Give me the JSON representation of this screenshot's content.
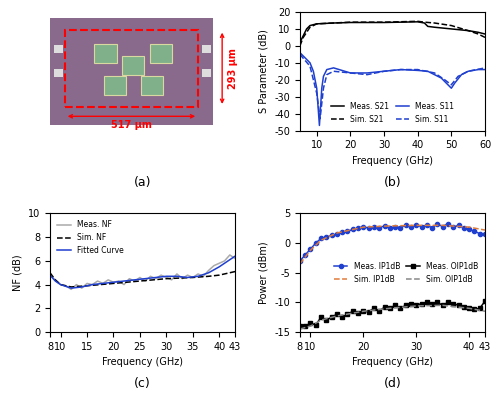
{
  "photo": {
    "caption": "(a)",
    "width_label": "517 μm",
    "height_label": "293 μm"
  },
  "chart_data": [
    {
      "type": "line",
      "caption": "(b)",
      "x_label": "Frequency (GHz)",
      "y_label": "S Parameter (dB)",
      "xlim": [
        5,
        60
      ],
      "xticks": [
        10,
        20,
        30,
        40,
        50,
        60
      ],
      "ylim": [
        -50,
        20
      ],
      "yticks": [
        -50,
        -40,
        -30,
        -20,
        -10,
        0,
        10,
        20
      ],
      "legend": "lower center",
      "series": [
        {
          "name": "Meas. S21",
          "color": "#000000",
          "line_style": "solid",
          "x": [
            5,
            6,
            7,
            8,
            10,
            15,
            20,
            25,
            30,
            35,
            40,
            42,
            43,
            45,
            50,
            55,
            58,
            60
          ],
          "values": [
            2,
            6,
            10,
            12,
            13,
            13.5,
            13.8,
            13.8,
            13.8,
            14,
            14.2,
            13.5,
            11.5,
            11,
            10,
            9,
            8,
            7
          ]
        },
        {
          "name": "Sim. S21",
          "color": "#000000",
          "line_style": "dashed",
          "x": [
            5,
            6,
            8,
            10,
            15,
            20,
            30,
            40,
            42,
            45,
            50,
            55,
            58,
            60
          ],
          "values": [
            0,
            5,
            11,
            13,
            13.5,
            14,
            14,
            14.5,
            14,
            13.5,
            12,
            9,
            7,
            5
          ]
        },
        {
          "name": "Meas. S11",
          "color": "#1f3fcf",
          "line_style": "solid",
          "x": [
            5,
            6,
            8,
            9,
            10,
            10.8,
            11.5,
            12,
            13,
            15,
            20,
            25,
            30,
            35,
            40,
            43,
            45,
            47,
            49,
            50,
            51,
            53,
            55,
            58,
            60
          ],
          "values": [
            -4,
            -6,
            -10,
            -15,
            -25,
            -47,
            -25,
            -18,
            -14,
            -13,
            -16,
            -16,
            -15,
            -14,
            -14.5,
            -15,
            -17,
            -19,
            -23,
            -25,
            -22,
            -17,
            -15,
            -14,
            -14
          ]
        },
        {
          "name": "Sim. S11",
          "color": "#1f3fcf",
          "line_style": "dashed",
          "x": [
            5,
            8,
            10,
            11,
            12,
            13,
            15,
            20,
            25,
            30,
            35,
            40,
            45,
            48,
            50,
            52,
            55,
            60
          ],
          "values": [
            -5,
            -12,
            -28,
            -43,
            -25,
            -17,
            -15,
            -16,
            -17,
            -15,
            -14,
            -14,
            -16,
            -20,
            -23,
            -18,
            -15,
            -13
          ]
        }
      ]
    },
    {
      "type": "line",
      "caption": "(c)",
      "x_label": "Frequency (GHz)",
      "y_label": "NF (dB)",
      "xlim": [
        8,
        43
      ],
      "xticks": [
        8,
        10,
        15,
        20,
        25,
        30,
        35,
        40,
        43
      ],
      "ylim": [
        0,
        10
      ],
      "yticks": [
        0,
        2,
        4,
        6,
        8,
        10
      ],
      "legend": "upper left",
      "series": [
        {
          "name": "Meas. NF",
          "color": "#aaaaaa",
          "line_style": "solid",
          "x": [
            8,
            9,
            10,
            11,
            12,
            13,
            14,
            15,
            16,
            17,
            18,
            19,
            20,
            21,
            22,
            23,
            24,
            25,
            26,
            27,
            28,
            29,
            30,
            31,
            32,
            33,
            34,
            35,
            36,
            37,
            38,
            39,
            40,
            41,
            42,
            43
          ],
          "values": [
            4.8,
            4.4,
            4.0,
            3.9,
            3.6,
            4.0,
            3.7,
            4.1,
            4.0,
            4.3,
            4.1,
            4.4,
            4.2,
            4.3,
            4.0,
            4.5,
            4.3,
            4.6,
            4.3,
            4.7,
            4.5,
            4.8,
            4.6,
            4.4,
            4.9,
            4.5,
            4.8,
            4.6,
            4.9,
            4.7,
            5.2,
            5.6,
            5.8,
            6.0,
            6.5,
            6.2
          ]
        },
        {
          "name": "Sim. NF",
          "color": "#000000",
          "line_style": "dashed",
          "x": [
            8,
            9,
            10,
            12,
            15,
            20,
            25,
            30,
            35,
            38,
            40,
            43
          ],
          "values": [
            5.0,
            4.4,
            4.0,
            3.8,
            3.9,
            4.1,
            4.3,
            4.5,
            4.6,
            4.7,
            4.8,
            5.1
          ]
        },
        {
          "name": "Fitted Curve",
          "color": "#1f3fcf",
          "line_style": "solid",
          "x": [
            8,
            9,
            10,
            12,
            14,
            16,
            18,
            20,
            22,
            24,
            26,
            28,
            30,
            32,
            34,
            36,
            38,
            40,
            42,
            43
          ],
          "values": [
            4.8,
            4.3,
            4.0,
            3.7,
            3.8,
            4.0,
            4.1,
            4.2,
            4.3,
            4.4,
            4.5,
            4.6,
            4.7,
            4.7,
            4.6,
            4.7,
            5.0,
            5.5,
            6.1,
            6.4
          ]
        }
      ]
    },
    {
      "type": "line",
      "caption": "(d)",
      "x_label": "Frequency (GHz)",
      "y_label": "Power (dBm)",
      "xlim": [
        8,
        43
      ],
      "xticks": [
        8,
        10,
        20,
        30,
        40,
        43
      ],
      "ylim": [
        -15,
        5
      ],
      "yticks": [
        -15,
        -10,
        -5,
        0,
        5
      ],
      "legend": "center right",
      "series": [
        {
          "name": "Meas. IP1dB",
          "color": "#1f3fcf",
          "line_style": "solid",
          "marker": "circle",
          "x": [
            8,
            9,
            10,
            11,
            12,
            13,
            14,
            15,
            16,
            17,
            18,
            19,
            20,
            21,
            22,
            23,
            24,
            25,
            26,
            27,
            28,
            29,
            30,
            31,
            32,
            33,
            34,
            35,
            36,
            37,
            38,
            39,
            40,
            41,
            42,
            43
          ],
          "values": [
            -3,
            -2,
            -1,
            0,
            0.8,
            1,
            1.3,
            1.5,
            1.8,
            2,
            2.3,
            2.5,
            2.8,
            2.5,
            2.8,
            2.6,
            2.9,
            2.5,
            2.8,
            2.6,
            3,
            2.7,
            3,
            2.8,
            3,
            2.6,
            3.2,
            2.8,
            3.3,
            2.7,
            3,
            2.5,
            2.3,
            2,
            1.6,
            1.5
          ]
        },
        {
          "name": "Sim. IP1dB",
          "color": "#e07b39",
          "line_style": "dashed",
          "x": [
            8,
            10,
            12,
            15,
            20,
            25,
            30,
            35,
            40,
            43
          ],
          "values": [
            -3.5,
            -1.2,
            0.5,
            1.7,
            2.7,
            2.9,
            3,
            3,
            2.7,
            2.2
          ]
        },
        {
          "name": "Meas. OIP1dB",
          "color": "#000000",
          "line_style": "solid",
          "marker": "square",
          "x": [
            8,
            9,
            10,
            11,
            12,
            13,
            14,
            15,
            16,
            17,
            18,
            19,
            20,
            21,
            22,
            23,
            24,
            25,
            26,
            27,
            28,
            29,
            30,
            31,
            32,
            33,
            34,
            35,
            36,
            37,
            38,
            39,
            40,
            41,
            42,
            43
          ],
          "values": [
            -14,
            -14,
            -13.5,
            -13.8,
            -12.5,
            -13,
            -12.5,
            -12,
            -12.5,
            -12,
            -11.5,
            -11.8,
            -11.5,
            -11.6,
            -11,
            -11.5,
            -10.8,
            -11,
            -10.5,
            -11,
            -10.5,
            -10.2,
            -10.5,
            -10.2,
            -10,
            -10.3,
            -10,
            -10.5,
            -10,
            -10.2,
            -10.5,
            -10.8,
            -11,
            -11.2,
            -11,
            -9.8
          ]
        },
        {
          "name": "Sim. OIP1dB",
          "color": "#888888",
          "line_style": "dashed",
          "x": [
            8,
            10,
            12,
            15,
            20,
            25,
            30,
            35,
            40,
            43
          ],
          "values": [
            -14.5,
            -14,
            -13,
            -12.3,
            -11.5,
            -11,
            -10.6,
            -10.5,
            -11,
            -11.5
          ]
        }
      ]
    }
  ]
}
